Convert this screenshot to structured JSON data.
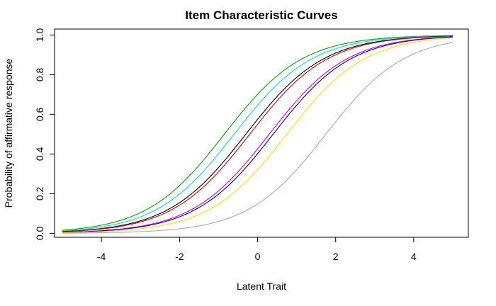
{
  "chart_data": {
    "type": "line",
    "title": "Item Characteristic Curves",
    "xlabel": "Latent Trait",
    "ylabel": "Probability of affirmative response",
    "xlim": [
      -5.2,
      5.4
    ],
    "ylim": [
      -0.02,
      1.03
    ],
    "xticks": [
      -4,
      -2,
      0,
      2,
      4
    ],
    "yticks": [
      0.0,
      0.2,
      0.4,
      0.6,
      0.8,
      1.0
    ],
    "xtick_labels": [
      "-4",
      "-2",
      "0",
      "2",
      "4"
    ],
    "ytick_labels": [
      "0.0",
      "0.2",
      "0.4",
      "0.6",
      "0.8",
      "1.0"
    ],
    "grid": false,
    "legend": "none",
    "x_range": [
      -5,
      5
    ],
    "series": [
      {
        "color": "#00aa00",
        "a": 1.0,
        "b": -0.85
      },
      {
        "color": "#00e0e0",
        "a": 1.0,
        "b": -0.6
      },
      {
        "color": "#000000",
        "a": 1.0,
        "b": -0.3
      },
      {
        "color": "#e00000",
        "a": 1.0,
        "b": -0.2
      },
      {
        "color": "#d000d0",
        "a": 1.0,
        "b": 0.3
      },
      {
        "color": "#0000e0",
        "a": 1.0,
        "b": 0.4
      },
      {
        "color": "#e8e800",
        "a": 1.0,
        "b": 0.75
      },
      {
        "color": "#aaaaaa",
        "a": 1.0,
        "b": 1.75
      }
    ]
  }
}
